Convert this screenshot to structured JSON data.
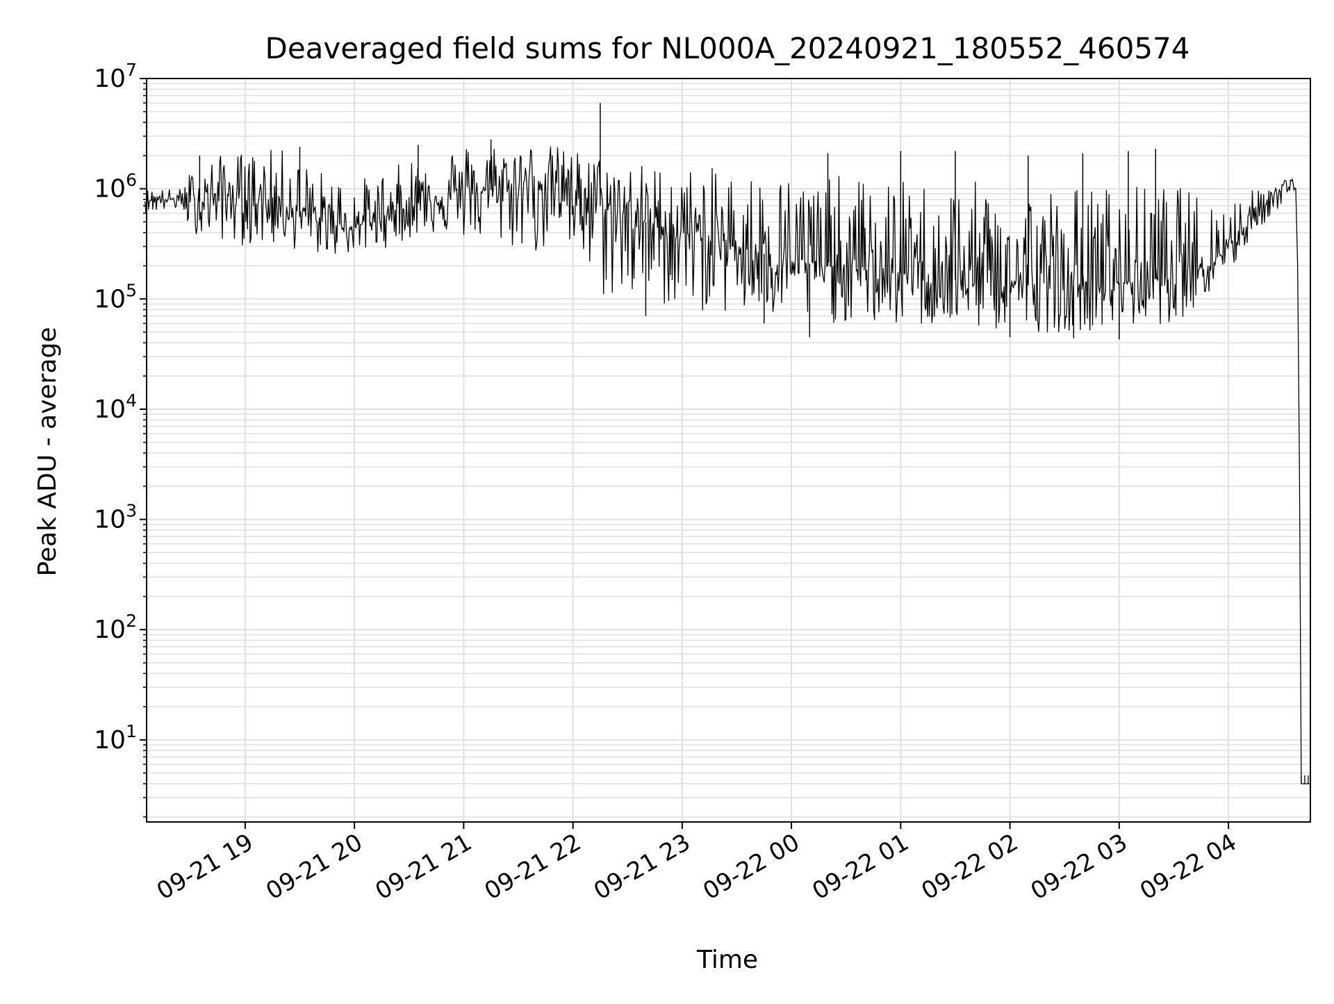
{
  "chart_data": {
    "type": "line",
    "title": "Deaveraged field sums for NL000A_20240921_180552_460574",
    "xlabel": "Time",
    "ylabel": "Peak ADU - average",
    "y_scale": "log",
    "ylim": [
      1.8,
      10000000
    ],
    "xlim": [
      "2024-09-21 18:05:52",
      "2024-09-22 04:45:00"
    ],
    "grid": true,
    "grid_color": "#e0e0e0",
    "line_color": "#000000",
    "x_ticks": [
      {
        "value": "2024-09-21 19:00",
        "label": "09-21 19"
      },
      {
        "value": "2024-09-21 20:00",
        "label": "09-21 20"
      },
      {
        "value": "2024-09-21 21:00",
        "label": "09-21 21"
      },
      {
        "value": "2024-09-21 22:00",
        "label": "09-21 22"
      },
      {
        "value": "2024-09-21 23:00",
        "label": "09-21 23"
      },
      {
        "value": "2024-09-22 00:00",
        "label": "09-22 00"
      },
      {
        "value": "2024-09-22 01:00",
        "label": "09-22 01"
      },
      {
        "value": "2024-09-22 02:00",
        "label": "09-22 02"
      },
      {
        "value": "2024-09-22 03:00",
        "label": "09-22 03"
      },
      {
        "value": "2024-09-22 04:00",
        "label": "09-22 04"
      }
    ],
    "y_ticks": [
      {
        "value": 10,
        "base": "10",
        "exp": "1"
      },
      {
        "value": 100,
        "base": "10",
        "exp": "2"
      },
      {
        "value": 1000,
        "base": "10",
        "exp": "3"
      },
      {
        "value": 10000,
        "base": "10",
        "exp": "4"
      },
      {
        "value": 100000,
        "base": "10",
        "exp": "5"
      },
      {
        "value": 1000000,
        "base": "10",
        "exp": "6"
      },
      {
        "value": 10000000,
        "base": "10",
        "exp": "7"
      }
    ],
    "series": [
      {
        "envelope": [
          {
            "t": "2024-09-21 18:05",
            "center": 800000,
            "low": 600000,
            "high": 1000000
          },
          {
            "t": "2024-09-21 18:25",
            "center": 800000,
            "low": 650000,
            "high": 1000000
          },
          {
            "t": "2024-09-21 18:30",
            "center": 700000,
            "low": 400000,
            "high": 1500000
          },
          {
            "t": "2024-09-21 18:45",
            "center": 900000,
            "low": 350000,
            "high": 2000000
          },
          {
            "t": "2024-09-21 19:00",
            "center": 800000,
            "low": 300000,
            "high": 2200000
          },
          {
            "t": "2024-09-21 19:20",
            "center": 750000,
            "low": 300000,
            "high": 2300000
          },
          {
            "t": "2024-09-21 19:40",
            "center": 500000,
            "low": 250000,
            "high": 1500000
          },
          {
            "t": "2024-09-21 20:00",
            "center": 450000,
            "low": 250000,
            "high": 1200000
          },
          {
            "t": "2024-09-21 20:20",
            "center": 600000,
            "low": 300000,
            "high": 1500000
          },
          {
            "t": "2024-09-21 20:40",
            "center": 800000,
            "low": 400000,
            "high": 2500000
          },
          {
            "t": "2024-09-21 21:00",
            "center": 900000,
            "low": 350000,
            "high": 2600000
          },
          {
            "t": "2024-09-21 21:20",
            "center": 1000000,
            "low": 300000,
            "high": 2700000
          },
          {
            "t": "2024-09-21 21:40",
            "center": 1200000,
            "low": 250000,
            "high": 2600000
          },
          {
            "t": "2024-09-21 21:55",
            "center": 1100000,
            "low": 300000,
            "high": 2400000
          },
          {
            "t": "2024-09-21 22:15",
            "center": 700000,
            "low": 100000,
            "high": 2000000
          },
          {
            "t": "2024-09-21 22:40",
            "center": 500000,
            "low": 90000,
            "high": 1700000
          },
          {
            "t": "2024-09-21 23:00",
            "center": 400000,
            "low": 80000,
            "high": 1600000
          },
          {
            "t": "2024-09-21 23:30",
            "center": 300000,
            "low": 70000,
            "high": 1500000
          },
          {
            "t": "2024-09-22 00:00",
            "center": 220000,
            "low": 60000,
            "high": 1400000
          },
          {
            "t": "2024-09-22 00:30",
            "center": 190000,
            "low": 60000,
            "high": 1300000
          },
          {
            "t": "2024-09-22 01:00",
            "center": 170000,
            "low": 55000,
            "high": 1200000
          },
          {
            "t": "2024-09-22 01:30",
            "center": 150000,
            "low": 55000,
            "high": 1200000
          },
          {
            "t": "2024-09-22 02:00",
            "center": 140000,
            "low": 50000,
            "high": 1100000
          },
          {
            "t": "2024-09-22 02:30",
            "center": 130000,
            "low": 50000,
            "high": 1100000
          },
          {
            "t": "2024-09-22 03:00",
            "center": 140000,
            "low": 55000,
            "high": 1100000
          },
          {
            "t": "2024-09-22 03:30",
            "center": 160000,
            "low": 60000,
            "high": 1100000
          },
          {
            "t": "2024-09-22 03:55",
            "center": 250000,
            "low": 120000,
            "high": 800000
          },
          {
            "t": "2024-09-22 04:15",
            "center": 600000,
            "low": 400000,
            "high": 1000000
          },
          {
            "t": "2024-09-22 04:35",
            "center": 1200000,
            "low": 900000,
            "high": 1300000
          },
          {
            "t": "2024-09-22 04:37",
            "center": 1000000,
            "low": 900000,
            "high": 1100000
          },
          {
            "t": "2024-09-22 04:40",
            "center": 4,
            "low": 4,
            "high": 4
          },
          {
            "t": "2024-09-22 04:45",
            "center": 4,
            "low": 4,
            "high": 4
          }
        ],
        "spikes": [
          {
            "t": "2024-09-21 18:35",
            "value": 2000000
          },
          {
            "t": "2024-09-21 19:30",
            "value": 2400000
          },
          {
            "t": "2024-09-21 20:35",
            "value": 2500000
          },
          {
            "t": "2024-09-21 21:15",
            "value": 2800000
          },
          {
            "t": "2024-09-21 22:15",
            "value": 6000000
          },
          {
            "t": "2024-09-22 00:20",
            "value": 2100000
          },
          {
            "t": "2024-09-22 01:00",
            "value": 2200000
          },
          {
            "t": "2024-09-22 01:30",
            "value": 2200000
          },
          {
            "t": "2024-09-22 02:10",
            "value": 2000000
          },
          {
            "t": "2024-09-22 02:40",
            "value": 2100000
          },
          {
            "t": "2024-09-22 03:05",
            "value": 2200000
          },
          {
            "t": "2024-09-22 03:20",
            "value": 2300000
          }
        ],
        "dips": [
          {
            "t": "2024-09-21 22:40",
            "value": 70000
          },
          {
            "t": "2024-09-21 23:45",
            "value": 60000
          },
          {
            "t": "2024-09-22 00:10",
            "value": 45000
          },
          {
            "t": "2024-09-22 02:00",
            "value": 45000
          },
          {
            "t": "2024-09-22 02:35",
            "value": 44000
          },
          {
            "t": "2024-09-22 03:00",
            "value": 43000
          }
        ]
      }
    ]
  }
}
